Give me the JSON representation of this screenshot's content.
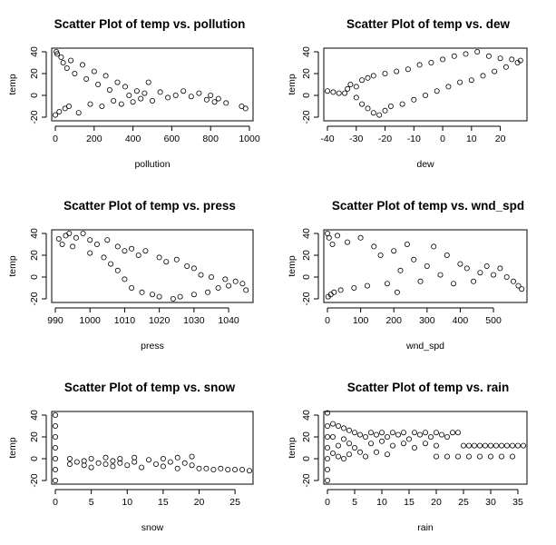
{
  "chart_data": [
    {
      "type": "scatter",
      "title": "Scatter Plot of temp vs. pollution",
      "xlabel": "pollution",
      "ylabel": "temp",
      "xlim": [
        0,
        1000
      ],
      "ylim": [
        -20,
        40
      ],
      "xticks": [
        0,
        200,
        400,
        600,
        800,
        1000
      ],
      "yticks": [
        -20,
        0,
        20,
        40
      ],
      "points": [
        [
          0,
          -18
        ],
        [
          5,
          40
        ],
        [
          10,
          38
        ],
        [
          20,
          -15
        ],
        [
          30,
          35
        ],
        [
          40,
          30
        ],
        [
          50,
          -12
        ],
        [
          60,
          25
        ],
        [
          70,
          -10
        ],
        [
          80,
          32
        ],
        [
          100,
          20
        ],
        [
          120,
          -16
        ],
        [
          140,
          28
        ],
        [
          160,
          15
        ],
        [
          180,
          -8
        ],
        [
          200,
          22
        ],
        [
          220,
          10
        ],
        [
          240,
          -10
        ],
        [
          260,
          18
        ],
        [
          280,
          5
        ],
        [
          300,
          -5
        ],
        [
          320,
          12
        ],
        [
          340,
          -8
        ],
        [
          360,
          8
        ],
        [
          380,
          0
        ],
        [
          400,
          -6
        ],
        [
          420,
          4
        ],
        [
          440,
          -3
        ],
        [
          460,
          2
        ],
        [
          480,
          12
        ],
        [
          500,
          -5
        ],
        [
          540,
          3
        ],
        [
          580,
          -2
        ],
        [
          620,
          0
        ],
        [
          660,
          4
        ],
        [
          700,
          -1
        ],
        [
          740,
          2
        ],
        [
          780,
          -4
        ],
        [
          800,
          0
        ],
        [
          820,
          -6
        ],
        [
          840,
          -3
        ],
        [
          880,
          -7
        ],
        [
          960,
          -10
        ],
        [
          980,
          -12
        ]
      ]
    },
    {
      "type": "scatter",
      "title": "Scatter Plot of temp vs. dew",
      "xlabel": "dew",
      "ylabel": "temp",
      "xlim": [
        -40,
        28
      ],
      "ylim": [
        -20,
        40
      ],
      "xticks": [
        -40,
        -30,
        -20,
        -10,
        0,
        10,
        20
      ],
      "yticks": [
        -20,
        0,
        20,
        40
      ],
      "points": [
        [
          -40,
          4
        ],
        [
          -38,
          3
        ],
        [
          -36,
          2
        ],
        [
          -34,
          2
        ],
        [
          -33,
          6
        ],
        [
          -32,
          10
        ],
        [
          -30,
          -2
        ],
        [
          -30,
          8
        ],
        [
          -28,
          -8
        ],
        [
          -28,
          14
        ],
        [
          -26,
          -12
        ],
        [
          -26,
          16
        ],
        [
          -24,
          -16
        ],
        [
          -24,
          18
        ],
        [
          -22,
          -18
        ],
        [
          -20,
          -14
        ],
        [
          -20,
          20
        ],
        [
          -18,
          -10
        ],
        [
          -16,
          22
        ],
        [
          -14,
          -8
        ],
        [
          -12,
          24
        ],
        [
          -10,
          -4
        ],
        [
          -8,
          28
        ],
        [
          -6,
          0
        ],
        [
          -4,
          30
        ],
        [
          -2,
          4
        ],
        [
          0,
          33
        ],
        [
          2,
          8
        ],
        [
          4,
          36
        ],
        [
          6,
          12
        ],
        [
          8,
          38
        ],
        [
          10,
          14
        ],
        [
          12,
          40
        ],
        [
          14,
          18
        ],
        [
          16,
          36
        ],
        [
          18,
          22
        ],
        [
          20,
          34
        ],
        [
          22,
          26
        ],
        [
          24,
          33
        ],
        [
          26,
          30
        ],
        [
          27,
          32
        ]
      ]
    },
    {
      "type": "scatter",
      "title": "Scatter Plot of temp vs. press",
      "xlabel": "press",
      "ylabel": "temp",
      "xlim": [
        990,
        1046
      ],
      "ylim": [
        -20,
        40
      ],
      "xticks": [
        990,
        1000,
        1010,
        1020,
        1030,
        1040
      ],
      "yticks": [
        -20,
        0,
        20,
        40
      ],
      "points": [
        [
          991,
          35
        ],
        [
          992,
          30
        ],
        [
          993,
          38
        ],
        [
          994,
          40
        ],
        [
          995,
          28
        ],
        [
          996,
          36
        ],
        [
          998,
          40
        ],
        [
          1000,
          34
        ],
        [
          1000,
          22
        ],
        [
          1002,
          30
        ],
        [
          1004,
          18
        ],
        [
          1005,
          34
        ],
        [
          1006,
          12
        ],
        [
          1008,
          28
        ],
        [
          1008,
          6
        ],
        [
          1010,
          24
        ],
        [
          1010,
          -2
        ],
        [
          1012,
          26
        ],
        [
          1012,
          -10
        ],
        [
          1014,
          20
        ],
        [
          1015,
          -14
        ],
        [
          1016,
          24
        ],
        [
          1018,
          -16
        ],
        [
          1020,
          18
        ],
        [
          1020,
          -18
        ],
        [
          1022,
          14
        ],
        [
          1024,
          -20
        ],
        [
          1025,
          16
        ],
        [
          1026,
          -18
        ],
        [
          1028,
          10
        ],
        [
          1030,
          -16
        ],
        [
          1030,
          8
        ],
        [
          1032,
          2
        ],
        [
          1034,
          -14
        ],
        [
          1035,
          0
        ],
        [
          1037,
          -10
        ],
        [
          1039,
          -2
        ],
        [
          1040,
          -8
        ],
        [
          1042,
          -4
        ],
        [
          1044,
          -6
        ],
        [
          1045,
          -12
        ]
      ]
    },
    {
      "type": "scatter",
      "title": "Scatter Plot of temp vs. wnd_spd",
      "xlabel": "wnd_spd",
      "ylabel": "temp",
      "xlim": [
        0,
        590
      ],
      "ylim": [
        -20,
        40
      ],
      "xticks": [
        0,
        100,
        200,
        300,
        400,
        500
      ],
      "yticks": [
        -20,
        0,
        20,
        40
      ],
      "points": [
        [
          0,
          40
        ],
        [
          2,
          -18
        ],
        [
          5,
          36
        ],
        [
          10,
          -16
        ],
        [
          15,
          30
        ],
        [
          20,
          -14
        ],
        [
          30,
          38
        ],
        [
          40,
          -12
        ],
        [
          60,
          32
        ],
        [
          80,
          -10
        ],
        [
          100,
          36
        ],
        [
          120,
          -8
        ],
        [
          140,
          28
        ],
        [
          160,
          20
        ],
        [
          180,
          -6
        ],
        [
          200,
          24
        ],
        [
          210,
          -14
        ],
        [
          220,
          6
        ],
        [
          240,
          30
        ],
        [
          260,
          16
        ],
        [
          280,
          -4
        ],
        [
          300,
          10
        ],
        [
          320,
          28
        ],
        [
          340,
          2
        ],
        [
          360,
          20
        ],
        [
          380,
          -6
        ],
        [
          400,
          12
        ],
        [
          420,
          8
        ],
        [
          440,
          -4
        ],
        [
          460,
          4
        ],
        [
          480,
          10
        ],
        [
          500,
          2
        ],
        [
          520,
          8
        ],
        [
          540,
          0
        ],
        [
          560,
          -4
        ],
        [
          575,
          -8
        ],
        [
          585,
          -11
        ]
      ]
    },
    {
      "type": "scatter",
      "title": "Scatter Plot of temp vs. snow",
      "xlabel": "snow",
      "ylabel": "temp",
      "xlim": [
        0,
        27
      ],
      "ylim": [
        -20,
        40
      ],
      "xticks": [
        0,
        5,
        10,
        15,
        20,
        25
      ],
      "yticks": [
        -20,
        0,
        20,
        40
      ],
      "points": [
        [
          0,
          40
        ],
        [
          0,
          30
        ],
        [
          0,
          20
        ],
        [
          0,
          10
        ],
        [
          0,
          0
        ],
        [
          0,
          -10
        ],
        [
          0,
          -20
        ],
        [
          2,
          0
        ],
        [
          2,
          -5
        ],
        [
          3,
          -3
        ],
        [
          4,
          -2
        ],
        [
          4,
          -6
        ],
        [
          5,
          0
        ],
        [
          5,
          -8
        ],
        [
          6,
          -4
        ],
        [
          7,
          1
        ],
        [
          7,
          -5
        ],
        [
          8,
          -2
        ],
        [
          8,
          -7
        ],
        [
          9,
          0
        ],
        [
          9,
          -4
        ],
        [
          10,
          -6
        ],
        [
          11,
          1
        ],
        [
          11,
          -3
        ],
        [
          12,
          -8
        ],
        [
          13,
          -1
        ],
        [
          14,
          -5
        ],
        [
          15,
          0
        ],
        [
          15,
          -7
        ],
        [
          16,
          -3
        ],
        [
          17,
          1
        ],
        [
          17,
          -9
        ],
        [
          18,
          -4
        ],
        [
          19,
          2
        ],
        [
          19,
          -6
        ],
        [
          20,
          -9
        ],
        [
          21,
          -9
        ],
        [
          22,
          -10
        ],
        [
          23,
          -9
        ],
        [
          24,
          -10
        ],
        [
          25,
          -10
        ],
        [
          26,
          -10
        ],
        [
          27,
          -11
        ]
      ]
    },
    {
      "type": "scatter",
      "title": "Scatter Plot of temp vs. rain",
      "xlabel": "rain",
      "ylabel": "temp",
      "xlim": [
        0,
        36
      ],
      "ylim": [
        -20,
        40
      ],
      "xticks": [
        0,
        5,
        10,
        15,
        20,
        25,
        30,
        35
      ],
      "yticks": [
        -20,
        0,
        20,
        40
      ],
      "points": [
        [
          0,
          42
        ],
        [
          0,
          30
        ],
        [
          0,
          20
        ],
        [
          0,
          10
        ],
        [
          0,
          0
        ],
        [
          0,
          -10
        ],
        [
          0,
          -20
        ],
        [
          1,
          32
        ],
        [
          1,
          20
        ],
        [
          1,
          5
        ],
        [
          2,
          30
        ],
        [
          2,
          12
        ],
        [
          2,
          2
        ],
        [
          3,
          28
        ],
        [
          3,
          18
        ],
        [
          3,
          0
        ],
        [
          4,
          26
        ],
        [
          4,
          14
        ],
        [
          4,
          4
        ],
        [
          5,
          24
        ],
        [
          5,
          10
        ],
        [
          6,
          22
        ],
        [
          6,
          6
        ],
        [
          7,
          20
        ],
        [
          7,
          2
        ],
        [
          8,
          24
        ],
        [
          8,
          14
        ],
        [
          9,
          22
        ],
        [
          9,
          6
        ],
        [
          10,
          24
        ],
        [
          10,
          16
        ],
        [
          11,
          20
        ],
        [
          11,
          4
        ],
        [
          12,
          24
        ],
        [
          12,
          12
        ],
        [
          13,
          22
        ],
        [
          14,
          24
        ],
        [
          14,
          14
        ],
        [
          15,
          18
        ],
        [
          16,
          24
        ],
        [
          16,
          10
        ],
        [
          17,
          22
        ],
        [
          18,
          24
        ],
        [
          18,
          14
        ],
        [
          19,
          20
        ],
        [
          20,
          24
        ],
        [
          20,
          12
        ],
        [
          21,
          22
        ],
        [
          22,
          20
        ],
        [
          23,
          24
        ],
        [
          24,
          24
        ],
        [
          25,
          12
        ],
        [
          26,
          12
        ],
        [
          27,
          12
        ],
        [
          28,
          12
        ],
        [
          29,
          12
        ],
        [
          30,
          12
        ],
        [
          31,
          12
        ],
        [
          32,
          12
        ],
        [
          33,
          12
        ],
        [
          34,
          12
        ],
        [
          35,
          12
        ],
        [
          36,
          12
        ],
        [
          20,
          2
        ],
        [
          22,
          2
        ],
        [
          24,
          2
        ],
        [
          26,
          2
        ],
        [
          28,
          2
        ],
        [
          30,
          2
        ],
        [
          32,
          2
        ],
        [
          34,
          2
        ]
      ]
    }
  ]
}
